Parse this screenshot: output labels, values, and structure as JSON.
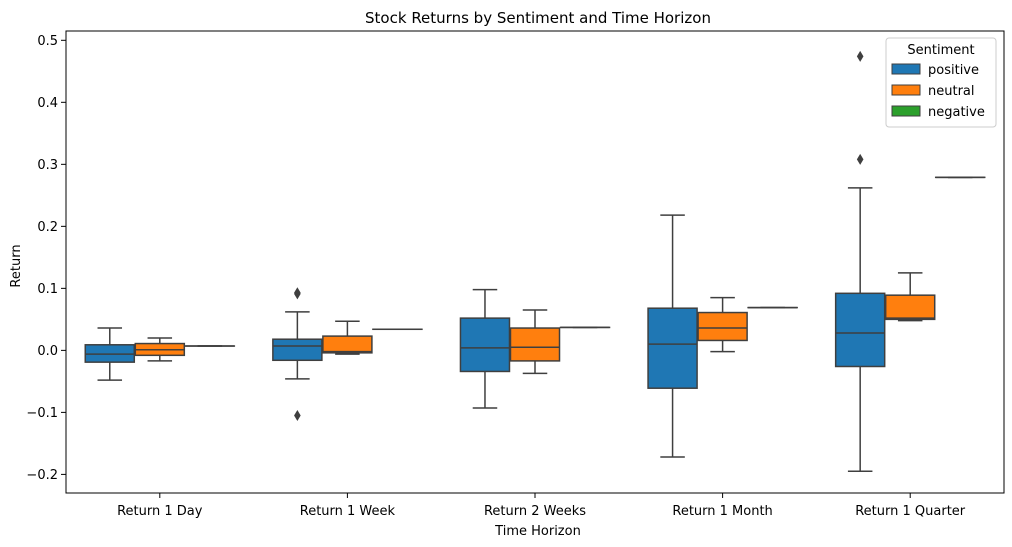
{
  "chart_data": {
    "type": "boxplot",
    "title": "Stock Returns by  Sentiment and Time Horizon",
    "xlabel": "Time Horizon",
    "ylabel": "Return",
    "ylim": [
      -0.23,
      0.515
    ],
    "yticks": [
      -0.2,
      -0.1,
      0.0,
      0.1,
      0.2,
      0.3,
      0.4,
      0.5
    ],
    "ytick_labels": [
      "−0.2",
      "−0.1",
      "0.0",
      "0.1",
      "0.2",
      "0.3",
      "0.4",
      "0.5"
    ],
    "categories": [
      "Return 1 Day",
      "Return 1 Week",
      "Return 2 Weeks",
      "Return 1 Month",
      "Return 1 Quarter"
    ],
    "grid": false,
    "legend": {
      "title": "Sentiment",
      "position": "top-right"
    },
    "series": [
      {
        "name": "positive",
        "color": "#1f77b4",
        "boxes": [
          {
            "whislo": -0.048,
            "q1": -0.019,
            "med": -0.006,
            "q3": 0.009,
            "whishi": 0.036,
            "fliers": []
          },
          {
            "whislo": -0.046,
            "q1": -0.016,
            "med": 0.007,
            "q3": 0.018,
            "whishi": 0.062,
            "fliers": [
              0.093,
              0.091,
              -0.105
            ]
          },
          {
            "whislo": -0.093,
            "q1": -0.034,
            "med": 0.004,
            "q3": 0.052,
            "whishi": 0.098,
            "fliers": []
          },
          {
            "whislo": -0.172,
            "q1": -0.061,
            "med": 0.01,
            "q3": 0.068,
            "whishi": 0.218,
            "fliers": []
          },
          {
            "whislo": -0.195,
            "q1": -0.026,
            "med": 0.028,
            "q3": 0.092,
            "whishi": 0.262,
            "fliers": [
              0.308,
              0.474
            ]
          }
        ]
      },
      {
        "name": "neutral",
        "color": "#ff7f0e",
        "boxes": [
          {
            "whislo": -0.017,
            "q1": -0.008,
            "med": 0.001,
            "q3": 0.011,
            "whishi": 0.02,
            "fliers": []
          },
          {
            "whislo": -0.006,
            "q1": -0.004,
            "med": -0.002,
            "q3": 0.023,
            "whishi": 0.047,
            "fliers": []
          },
          {
            "whislo": -0.037,
            "q1": -0.017,
            "med": 0.005,
            "q3": 0.036,
            "whishi": 0.065,
            "fliers": []
          },
          {
            "whislo": -0.002,
            "q1": 0.016,
            "med": 0.036,
            "q3": 0.061,
            "whishi": 0.085,
            "fliers": []
          },
          {
            "whislo": 0.048,
            "q1": 0.05,
            "med": 0.052,
            "q3": 0.089,
            "whishi": 0.125,
            "fliers": []
          }
        ]
      },
      {
        "name": "negative",
        "color": "#2ca02c",
        "boxes": [
          {
            "whislo": 0.007,
            "q1": 0.007,
            "med": 0.007,
            "q3": 0.007,
            "whishi": 0.007,
            "fliers": []
          },
          {
            "whislo": 0.034,
            "q1": 0.034,
            "med": 0.034,
            "q3": 0.034,
            "whishi": 0.034,
            "fliers": []
          },
          {
            "whislo": 0.037,
            "q1": 0.037,
            "med": 0.037,
            "q3": 0.037,
            "whishi": 0.037,
            "fliers": []
          },
          {
            "whislo": 0.069,
            "q1": 0.069,
            "med": 0.069,
            "q3": 0.069,
            "whishi": 0.069,
            "fliers": []
          },
          {
            "whislo": 0.279,
            "q1": 0.279,
            "med": 0.279,
            "q3": 0.279,
            "whishi": 0.279,
            "fliers": []
          }
        ]
      }
    ]
  }
}
